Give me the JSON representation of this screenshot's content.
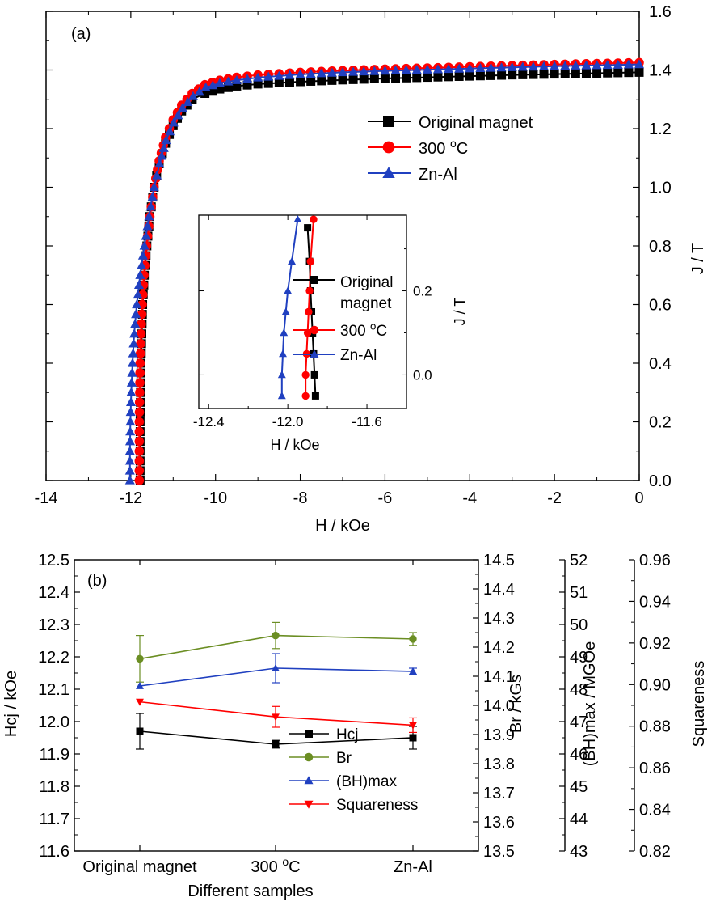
{
  "chart_data": [
    {
      "panel": "(a)",
      "type": "line",
      "xlabel": "H / kOe",
      "ylabel": "J / T",
      "xlim": [
        -14,
        0
      ],
      "ylim": [
        0,
        1.6
      ],
      "xticks": [
        "-14",
        "-12",
        "-10",
        "-8",
        "-6",
        "-4",
        "-2",
        "0"
      ],
      "yticks": [
        "0.0",
        "0.2",
        "0.4",
        "0.6",
        "0.8",
        "1.0",
        "1.2",
        "1.4",
        "1.6"
      ],
      "legend_position": "center-right",
      "series": [
        {
          "name": "Original magnet",
          "marker": "square",
          "color": "#000000",
          "x": [
            -11.78,
            -11.78,
            -11.78,
            -11.77,
            -11.76,
            -11.74,
            -11.72,
            -11.68,
            -11.62,
            -11.55,
            -11.45,
            -11.33,
            -11.18,
            -11.0,
            -10.8,
            -10.55,
            -10.25,
            -9.9,
            -9.5,
            -9.0,
            -8.0,
            -7.0,
            -6.0,
            -5.0,
            -4.0,
            -3.0,
            -2.0,
            -1.0,
            0.0
          ],
          "y": [
            0.0,
            0.1,
            0.2,
            0.3,
            0.4,
            0.5,
            0.6,
            0.7,
            0.8,
            0.9,
            1.0,
            1.08,
            1.15,
            1.21,
            1.26,
            1.3,
            1.32,
            1.335,
            1.345,
            1.352,
            1.36,
            1.366,
            1.371,
            1.375,
            1.379,
            1.383,
            1.386,
            1.389,
            1.392
          ]
        },
        {
          "name": "300 oC",
          "marker": "circle",
          "color": "#ff0000",
          "x": [
            -11.8,
            -11.8,
            -11.8,
            -11.79,
            -11.78,
            -11.76,
            -11.73,
            -11.69,
            -11.63,
            -11.55,
            -11.45,
            -11.33,
            -11.18,
            -11.0,
            -10.8,
            -10.55,
            -10.25,
            -9.9,
            -9.5,
            -9.0,
            -8.0,
            -7.0,
            -6.0,
            -5.0,
            -4.0,
            -3.0,
            -2.0,
            -1.0,
            0.0
          ],
          "y": [
            0.0,
            0.1,
            0.2,
            0.3,
            0.4,
            0.5,
            0.6,
            0.7,
            0.8,
            0.9,
            1.0,
            1.09,
            1.17,
            1.23,
            1.28,
            1.32,
            1.35,
            1.365,
            1.375,
            1.383,
            1.392,
            1.398,
            1.403,
            1.407,
            1.411,
            1.415,
            1.419,
            1.422,
            1.425
          ]
        },
        {
          "name": "Zn-Al",
          "marker": "triangle",
          "color": "#2040c0",
          "x": [
            -12.02,
            -12.02,
            -12.01,
            -11.99,
            -11.96,
            -11.92,
            -11.86,
            -11.78,
            -11.68,
            -11.57,
            -11.45,
            -11.32,
            -11.17,
            -10.99,
            -10.78,
            -10.53,
            -10.23,
            -9.9,
            -9.5,
            -9.0,
            -8.0,
            -7.0,
            -6.0,
            -5.0,
            -4.0,
            -3.0,
            -2.0,
            -1.0,
            0.0
          ],
          "y": [
            0.0,
            0.1,
            0.2,
            0.3,
            0.4,
            0.5,
            0.6,
            0.7,
            0.8,
            0.9,
            1.0,
            1.08,
            1.16,
            1.22,
            1.27,
            1.31,
            1.34,
            1.355,
            1.365,
            1.374,
            1.385,
            1.392,
            1.397,
            1.401,
            1.405,
            1.409,
            1.413,
            1.416,
            1.419
          ]
        }
      ],
      "inset": {
        "xlabel": "H / kOe",
        "ylabel": "J / T",
        "xlim": [
          -12.45,
          -11.4
        ],
        "ylim": [
          -0.08,
          0.38
        ],
        "xticks": [
          "-12.4",
          "-12.0",
          "-11.6"
        ],
        "yticks": [
          "0.0",
          "0.2"
        ],
        "legend_labels": [
          "Original",
          "magnet",
          "300 oC",
          "Zn-Al"
        ],
        "series": [
          {
            "name": "Original magnet",
            "marker": "square",
            "color": "#000000",
            "x": [
              -11.86,
              -11.865,
              -11.87,
              -11.875,
              -11.88,
              -11.885,
              -11.89,
              -11.9
            ],
            "y": [
              -0.05,
              0.0,
              0.05,
              0.1,
              0.15,
              0.2,
              0.27,
              0.35
            ]
          },
          {
            "name": "300 oC",
            "marker": "circle",
            "color": "#ff0000",
            "x": [
              -11.91,
              -11.91,
              -11.905,
              -11.9,
              -11.895,
              -11.89,
              -11.885,
              -11.87
            ],
            "y": [
              -0.05,
              0.0,
              0.05,
              0.1,
              0.15,
              0.2,
              0.27,
              0.37
            ]
          },
          {
            "name": "Zn-Al",
            "marker": "triangle",
            "color": "#2040c0",
            "x": [
              -12.03,
              -12.03,
              -12.025,
              -12.02,
              -12.01,
              -12.0,
              -11.98,
              -11.95
            ],
            "y": [
              -0.05,
              0.0,
              0.05,
              0.1,
              0.15,
              0.2,
              0.27,
              0.37
            ]
          }
        ]
      }
    },
    {
      "panel": "(b)",
      "type": "line",
      "xlabel": "Different samples",
      "categories": [
        "Original magnet",
        "300 oC",
        "Zn-Al"
      ],
      "axes": [
        {
          "label": "Hcj / kOe",
          "side": "left",
          "range": [
            11.6,
            12.5
          ],
          "ticks": [
            "11.6",
            "11.7",
            "11.8",
            "11.9",
            "12.0",
            "12.1",
            "12.2",
            "12.3",
            "12.4",
            "12.5"
          ]
        },
        {
          "label": "Br / kGs",
          "side": "right",
          "range": [
            13.5,
            14.5
          ],
          "ticks": [
            "13.5",
            "13.6",
            "13.7",
            "13.8",
            "13.9",
            "14.0",
            "14.1",
            "14.2",
            "14.3",
            "14.4",
            "14.5"
          ]
        },
        {
          "label": "(BH)max / MGOe",
          "side": "right",
          "range": [
            43,
            52
          ],
          "ticks": [
            "43",
            "44",
            "45",
            "46",
            "47",
            "48",
            "49",
            "50",
            "51",
            "52"
          ]
        },
        {
          "label": "Squareness",
          "side": "right",
          "range": [
            0.82,
            0.96
          ],
          "ticks": [
            "0.82",
            "0.84",
            "0.86",
            "0.88",
            "0.90",
            "0.92",
            "0.94",
            "0.96"
          ]
        }
      ],
      "legend_position": "bottom-center",
      "series": [
        {
          "name": "Hcj",
          "axis": 0,
          "marker": "square",
          "color": "#000000",
          "values": [
            11.97,
            11.93,
            11.95
          ],
          "errors": [
            0.055,
            0.012,
            0.035
          ]
        },
        {
          "name": "Br",
          "axis": 1,
          "marker": "circle",
          "color": "#6b8e23",
          "values": [
            14.16,
            14.24,
            14.228
          ],
          "errors": [
            0.08,
            0.045,
            0.022
          ]
        },
        {
          "name": "(BH)max",
          "axis": 2,
          "marker": "triangle",
          "color": "#2040c0",
          "values": [
            48.1,
            48.65,
            48.55
          ],
          "errors": [
            0.0,
            0.45,
            0.1
          ]
        },
        {
          "name": "Squareness",
          "axis": 3,
          "marker": "triangle-down",
          "color": "#ff0000",
          "values": [
            0.8917,
            0.8845,
            0.8805
          ],
          "errors": [
            0.0,
            0.005,
            0.0035
          ]
        }
      ]
    }
  ]
}
